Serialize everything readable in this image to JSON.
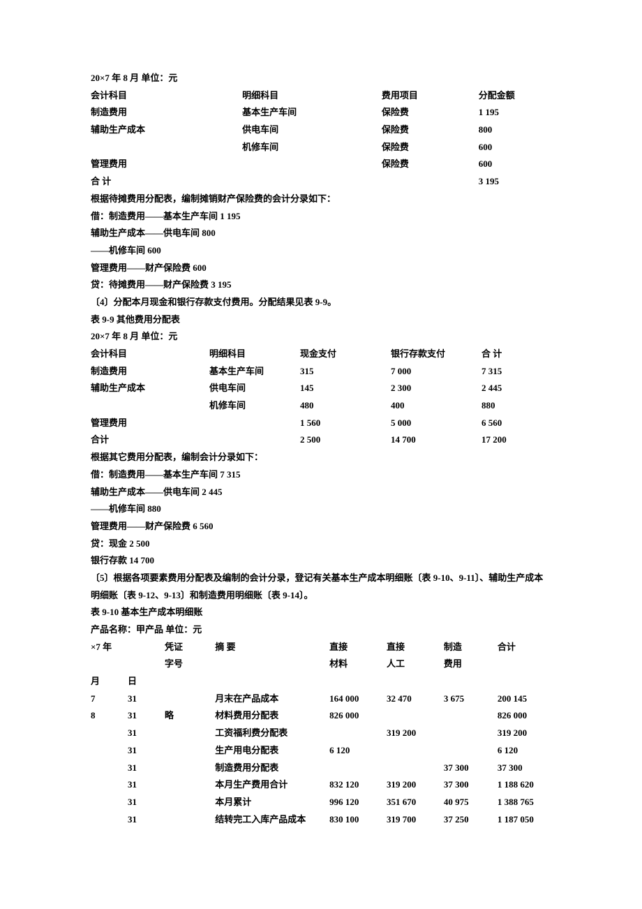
{
  "header": {
    "date_line": "20×7 年 8 月  单位：元"
  },
  "table1": {
    "headers": {
      "h1": "会计科目",
      "h2": "明细科目",
      "h3": "费用项目",
      "h4": "分配金额"
    },
    "rows": [
      {
        "c1": "制造费用",
        "c2": "基本生产车间",
        "c3": "保险费",
        "c4": "1 195"
      },
      {
        "c1": "辅助生产成本",
        "c2": "供电车间",
        "c3": "保险费",
        "c4": "800"
      },
      {
        "c1": "",
        "c2": "机修车间",
        "c3": "保险费",
        "c4": "600"
      },
      {
        "c1": "管理费用",
        "c2": "",
        "c3": "保险费",
        "c4": "600"
      },
      {
        "c1": "合 计",
        "c2": "",
        "c3": "",
        "c4": "3 195"
      }
    ]
  },
  "para1": {
    "l1": "根据待摊费用分配表，编制摊销财产保险费的会计分录如下：",
    "l2": "借：制造费用——基本生产车间  1 195",
    "l3": "辅助生产成本——供电车间  800",
    "l4": "——机修车间  600",
    "l5": "管理费用——财产保险费  600",
    "l6": "贷：待摊费用——财产保险费  3 195",
    "l7": "〔4〕分配本月现金和银行存款支付费用。分配结果见表 9-9。",
    "l8": "表 9-9  其他费用分配表",
    "l9": "20×7 年 8 月  单位：元"
  },
  "table2": {
    "headers": {
      "h1": "会计科目",
      "h2": "明细科目",
      "h3": "现金支付",
      "h4": "银行存款支付",
      "h5": "合 计"
    },
    "rows": [
      {
        "c1": "制造费用",
        "c2": "基本生产车间",
        "c3": "315",
        "c4": "7 000",
        "c5": "7 315"
      },
      {
        "c1": "辅助生产成本",
        "c2": "供电车间",
        "c3": "145",
        "c4": "2 300",
        "c5": "2 445"
      },
      {
        "c1": "",
        "c2": "机修车间",
        "c3": "480",
        "c4": "400",
        "c5": "880"
      },
      {
        "c1": "管理费用",
        "c2": "",
        "c3": "1 560",
        "c4": "5 000",
        "c5": "6 560"
      },
      {
        "c1": "合计",
        "c2": "",
        "c3": "2 500",
        "c4": "14 700",
        "c5": "17 200"
      }
    ]
  },
  "para2": {
    "l1": "根据其它费用分配表，编制会计分录如下：",
    "l2": "借：制造费用——基本生产车间  7 315",
    "l3": "辅助生产成本——供电车间  2 445",
    "l4": "——机修车间  880",
    "l5": "管理费用——财产保险费  6 560",
    "l6": "贷：现金  2 500",
    "l7": "银行存款  14 700",
    "l8": "〔5〕根据各项要素费用分配表及编制的会计分录，登记有关基本生产成本明细账〔表 9-10、9-11〕、辅助生产成本明细账〔表 9-12、9-13〕和制造费用明细账〔表 9-14〕。",
    "l9": "表 9-10  基本生产成本明细账",
    "l10": "产品名称：甲产品  单位：元"
  },
  "table3": {
    "headers": {
      "h1a": "×7 年",
      "h1b": "",
      "h2": "凭证",
      "h2b": "字号",
      "h3": "摘 要",
      "h4": "直接",
      "h4b": "材料",
      "h5": "直接",
      "h5b": "人工",
      "h6": "制造",
      "h6b": "费用",
      "h7": "合计"
    },
    "sub": {
      "s1": "月",
      "s2": "日"
    },
    "rows": [
      {
        "c1": "7",
        "c2": "31",
        "c3": "",
        "c4": "月末在产品成本",
        "c5": "164 000",
        "c6": "32 470",
        "c7": "3 675",
        "c8": "200 145"
      },
      {
        "c1": "8",
        "c2": "31",
        "c3": "略",
        "c4": "材料费用分配表",
        "c5": "826 000",
        "c6": "",
        "c7": "",
        "c8": "826 000"
      },
      {
        "c1": "",
        "c2": "31",
        "c3": "",
        "c4": "工资福利费分配表",
        "c5": "",
        "c6": "319 200",
        "c7": "",
        "c8": "319 200"
      },
      {
        "c1": "",
        "c2": "31",
        "c3": "",
        "c4": "生产用电分配表",
        "c5": "6 120",
        "c6": "",
        "c7": "",
        "c8": "6 120"
      },
      {
        "c1": "",
        "c2": "31",
        "c3": "",
        "c4": "制造费用分配表",
        "c5": "",
        "c6": "",
        "c7": "37 300",
        "c8": "37 300"
      },
      {
        "c1": "",
        "c2": "31",
        "c3": "",
        "c4": "本月生产费用合计",
        "c5": "832 120",
        "c6": "319 200",
        "c7": "37 300",
        "c8": "1 188 620"
      },
      {
        "c1": "",
        "c2": "31",
        "c3": "",
        "c4": "本月累计",
        "c5": "996 120",
        "c6": "351 670",
        "c7": "40 975",
        "c8": "1 388 765"
      },
      {
        "c1": "",
        "c2": "31",
        "c3": "",
        "c4": "结转完工入库产品成本",
        "c5": "830 100",
        "c6": "319 700",
        "c7": "37 250",
        "c8": "1 187 050"
      }
    ]
  }
}
